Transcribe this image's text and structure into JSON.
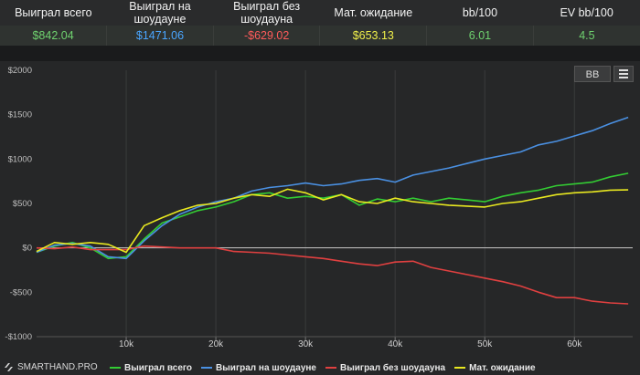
{
  "stats": {
    "headers": [
      "Выиграл всего",
      "Выиграл на шоудауне",
      "Выиграл без шоудауна",
      "Мат. ожидание",
      "bb/100",
      "EV bb/100"
    ],
    "values": [
      "$842.04",
      "$1471.06",
      "-$629.02",
      "$653.13",
      "6.01",
      "4.5"
    ],
    "value_colors": [
      "#6fd26f",
      "#4aa6ff",
      "#ff5b5b",
      "#f0f04a",
      "#6fd26f",
      "#6fd26f"
    ]
  },
  "toolbar": {
    "bb_label": "BB",
    "menu_icon": "hamburger-menu-icon"
  },
  "brand": {
    "name": "SMARTHAND.PRO",
    "icon": "smarthand-logo-icon"
  },
  "chart_data": {
    "type": "line",
    "title": "",
    "xlabel": "",
    "ylabel": "",
    "x_ticks": [
      10000,
      20000,
      30000,
      40000,
      50000,
      60000
    ],
    "x_tick_labels": [
      "10k",
      "20k",
      "30k",
      "40k",
      "50k",
      "60k"
    ],
    "y_ticks": [
      -1000,
      -500,
      0,
      500,
      1000,
      1500,
      2000
    ],
    "y_tick_labels": [
      "-$1000",
      "-$500",
      "$0",
      "$500",
      "$1000",
      "$1500",
      "$2000"
    ],
    "xlim": [
      0,
      66500
    ],
    "ylim": [
      -1000,
      2000
    ],
    "grid": "vertical",
    "legend_position": "bottom",
    "x": [
      0,
      2000,
      4000,
      6000,
      8000,
      10000,
      12000,
      14000,
      16000,
      18000,
      20000,
      22000,
      24000,
      26000,
      28000,
      30000,
      32000,
      34000,
      36000,
      38000,
      40000,
      42000,
      44000,
      46000,
      48000,
      50000,
      52000,
      54000,
      56000,
      58000,
      60000,
      62000,
      64000,
      66000
    ],
    "series": [
      {
        "name": "Выиграл всего",
        "color": "#33cc33",
        "values": [
          -50,
          20,
          60,
          0,
          -120,
          -100,
          100,
          280,
          350,
          420,
          460,
          520,
          600,
          620,
          560,
          580,
          560,
          600,
          480,
          550,
          520,
          560,
          520,
          560,
          540,
          520,
          580,
          620,
          650,
          700,
          720,
          740,
          800,
          840
        ]
      },
      {
        "name": "Выиграл на шоудауне",
        "color": "#4a90e2",
        "values": [
          -50,
          30,
          50,
          20,
          -100,
          -120,
          80,
          250,
          380,
          460,
          520,
          560,
          640,
          680,
          700,
          730,
          700,
          720,
          760,
          780,
          740,
          820,
          860,
          900,
          950,
          1000,
          1040,
          1080,
          1160,
          1200,
          1260,
          1320,
          1400,
          1470
        ]
      },
      {
        "name": "Выиграл без шоудауна",
        "color": "#e04040",
        "values": [
          0,
          -10,
          10,
          -20,
          -20,
          -20,
          20,
          10,
          0,
          0,
          0,
          -40,
          -50,
          -60,
          -80,
          -100,
          -120,
          -150,
          -180,
          -200,
          -160,
          -150,
          -220,
          -260,
          -300,
          -340,
          -380,
          -430,
          -500,
          -560,
          -560,
          -600,
          -620,
          -630
        ]
      },
      {
        "name": "Мат. ожидание",
        "color": "#e8e820",
        "values": [
          -40,
          60,
          40,
          60,
          40,
          -50,
          250,
          340,
          420,
          480,
          500,
          560,
          600,
          580,
          660,
          620,
          540,
          600,
          520,
          500,
          560,
          520,
          500,
          480,
          470,
          460,
          500,
          520,
          560,
          600,
          620,
          630,
          650,
          653
        ]
      }
    ]
  }
}
